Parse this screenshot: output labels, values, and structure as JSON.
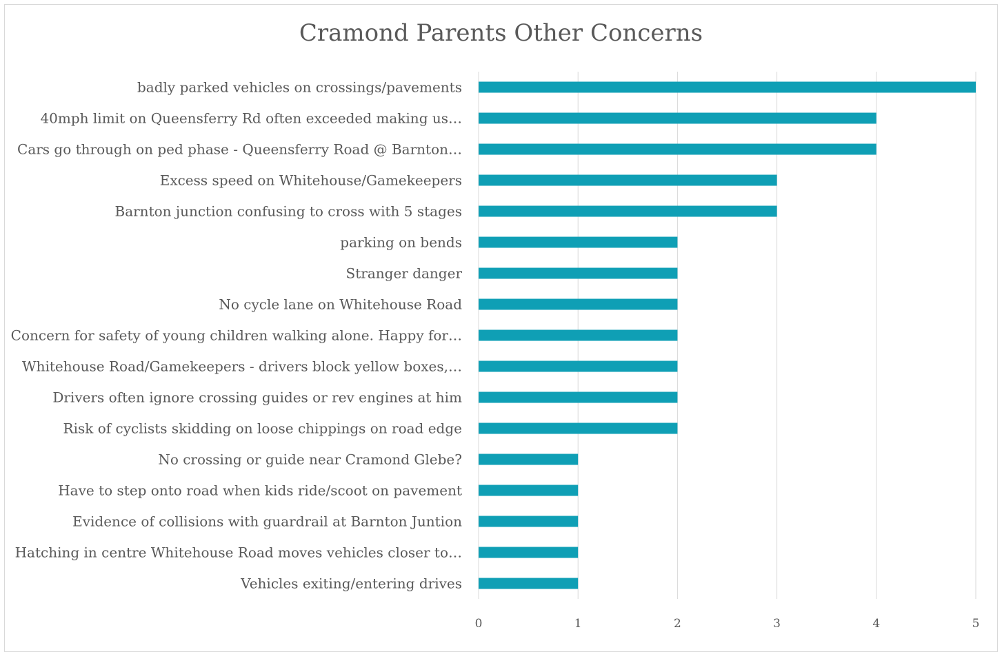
{
  "chart_data": {
    "type": "bar",
    "orientation": "horizontal",
    "title": "Cramond Parents Other Concerns",
    "xlabel": "",
    "ylabel": "",
    "xlim": [
      0,
      5
    ],
    "x_ticks": [
      "0",
      "1",
      "2",
      "3",
      "4",
      "5"
    ],
    "grid": true,
    "legend": "none",
    "bar_color": "#0f9fb5",
    "categories": [
      "badly parked vehicles on crossings/pavements",
      "40mph limit on Queensferry Rd often exceeded making us…",
      "Cars go through on ped phase - Queensferry Road @ Barnton…",
      "Excess speed on Whitehouse/Gamekeepers",
      "Barnton junction confusing to cross with 5 stages",
      "parking on bends",
      "Stranger danger",
      "No cycle lane on Whitehouse Road",
      "Concern for safety of young children walking alone. Happy for…",
      "Whitehouse Road/Gamekeepers - drivers block yellow boxes,…",
      "Drivers often ignore crossing guides or rev engines at him",
      "Risk of cyclists skidding on loose chippings on road edge",
      "No crossing or guide near Cramond Glebe?",
      "Have to step onto road when kids ride/scoot on pavement",
      "Evidence of collisions with guardrail at Barnton Juntion",
      "Hatching in centre Whitehouse Road moves vehicles closer to…",
      "Vehicles exiting/entering drives"
    ],
    "values": [
      5,
      4,
      4,
      3,
      3,
      2,
      2,
      2,
      2,
      2,
      2,
      2,
      1,
      1,
      1,
      1,
      1
    ]
  }
}
